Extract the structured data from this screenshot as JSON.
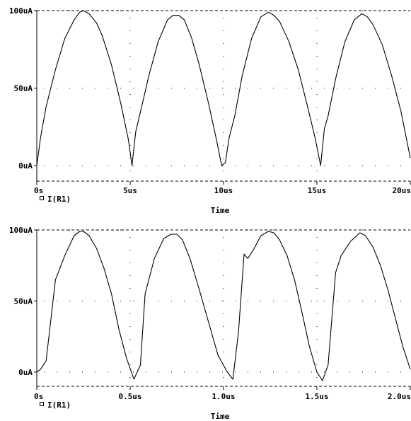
{
  "chart_data": [
    {
      "type": "line",
      "xlabel": "Time",
      "ylabel": "",
      "x_unit": "us",
      "xlim": [
        0,
        20
      ],
      "ylim": [
        -10,
        100
      ],
      "x_ticks": [
        0,
        5,
        10,
        15,
        20
      ],
      "x_tick_labels": [
        "0s",
        "5us",
        "10us",
        "15us",
        "20us"
      ],
      "y_ticks": [
        0,
        50,
        100
      ],
      "y_tick_labels": [
        "0uA",
        "50uA",
        "100uA"
      ],
      "grid": "dotted",
      "legend": {
        "position": "bottom-left",
        "marker": "□",
        "label": "I(R1)"
      },
      "series": [
        {
          "name": "I(R1)",
          "x": [
            0,
            0.2,
            0.5,
            1.0,
            1.5,
            2.0,
            2.3,
            2.5,
            2.8,
            3.2,
            3.5,
            4.0,
            4.5,
            4.9,
            5.1,
            5.3,
            5.5,
            6.0,
            6.5,
            7.0,
            7.3,
            7.6,
            7.9,
            8.3,
            8.7,
            9.2,
            9.6,
            9.9,
            10.1,
            10.3,
            10.6,
            11.0,
            11.5,
            12.0,
            12.4,
            12.7,
            13.0,
            13.5,
            14.0,
            14.5,
            14.9,
            15.2,
            15.4,
            15.6,
            16.0,
            16.5,
            17.0,
            17.4,
            17.7,
            18.0,
            18.5,
            19.0,
            19.5,
            20.0
          ],
          "y": [
            0,
            18,
            38,
            62,
            82,
            94,
            99,
            100,
            98,
            92,
            84,
            65,
            40,
            17,
            0,
            22,
            32,
            58,
            80,
            94,
            97,
            97,
            94,
            82,
            65,
            40,
            18,
            0,
            2,
            18,
            32,
            58,
            82,
            96,
            99,
            97,
            93,
            80,
            62,
            38,
            18,
            0,
            24,
            32,
            56,
            80,
            94,
            98,
            96,
            91,
            78,
            58,
            35,
            5
          ]
        }
      ]
    },
    {
      "type": "line",
      "xlabel": "Time",
      "ylabel": "",
      "x_unit": "us",
      "xlim": [
        0,
        2.0
      ],
      "ylim": [
        -10,
        100
      ],
      "x_ticks": [
        0,
        0.5,
        1.0,
        1.5,
        2.0
      ],
      "x_tick_labels": [
        "0s",
        "0.5us",
        "1.0us",
        "1.5us",
        "2.0us"
      ],
      "y_ticks": [
        0,
        50,
        100
      ],
      "y_tick_labels": [
        "0uA",
        "50uA",
        "100uA"
      ],
      "grid": "dotted",
      "legend": {
        "position": "bottom-left",
        "marker": "□",
        "label": "I(R1)"
      },
      "series": [
        {
          "name": "I(R1)",
          "x": [
            0,
            0.02,
            0.05,
            0.1,
            0.15,
            0.2,
            0.23,
            0.25,
            0.28,
            0.32,
            0.36,
            0.4,
            0.44,
            0.48,
            0.52,
            0.555,
            0.58,
            0.63,
            0.68,
            0.72,
            0.75,
            0.78,
            0.82,
            0.87,
            0.92,
            0.97,
            1.02,
            1.05,
            1.08,
            1.11,
            1.13,
            1.16,
            1.2,
            1.24,
            1.27,
            1.3,
            1.34,
            1.38,
            1.42,
            1.46,
            1.5,
            1.53,
            1.56,
            1.6,
            1.63,
            1.68,
            1.73,
            1.76,
            1.8,
            1.84,
            1.88,
            1.92,
            1.96,
            2.0
          ],
          "y": [
            0,
            2,
            8,
            65,
            82,
            96,
            99,
            99,
            96,
            87,
            73,
            55,
            30,
            10,
            -5,
            5,
            55,
            80,
            94,
            97,
            97,
            93,
            80,
            58,
            35,
            12,
            0,
            -5,
            28,
            83,
            80,
            86,
            96,
            99,
            98,
            93,
            82,
            65,
            42,
            18,
            0,
            -6,
            5,
            70,
            82,
            92,
            98,
            96,
            88,
            75,
            58,
            38,
            18,
            2
          ]
        }
      ]
    }
  ]
}
